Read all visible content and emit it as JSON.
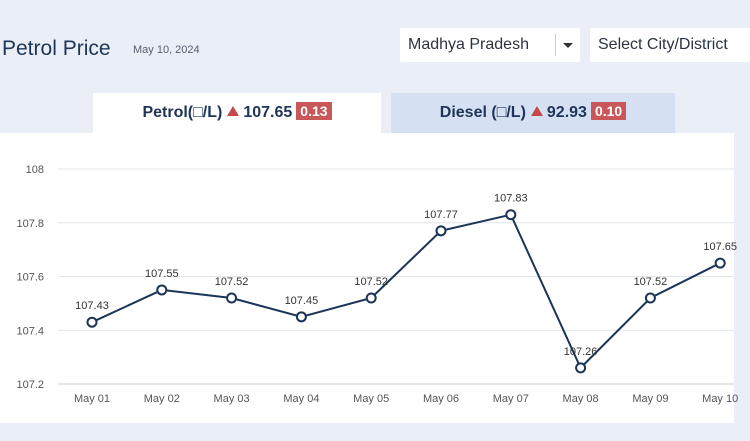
{
  "header": {
    "title": "Petrol Price",
    "date": "May 10, 2024",
    "state_select": "Madhya Pradesh",
    "city_select": "Select City/District"
  },
  "tabs": {
    "petrol": {
      "label": "Petrol(□/L)",
      "price": "107.65",
      "change": "0.13"
    },
    "diesel": {
      "label": "Diesel (□/L)",
      "price": "92.93",
      "change": "0.10"
    }
  },
  "colors": {
    "line": "#1a3558",
    "badge": "#c9575a",
    "up_arrow": "#c44949"
  },
  "chart_data": {
    "type": "line",
    "categories": [
      "May 01",
      "May 02",
      "May 03",
      "May 04",
      "May 05",
      "May 06",
      "May 07",
      "May 08",
      "May 09",
      "May 10"
    ],
    "values": [
      107.43,
      107.55,
      107.52,
      107.45,
      107.52,
      107.77,
      107.83,
      107.26,
      107.52,
      107.65
    ],
    "data_labels": [
      "107.43",
      "107.55",
      "107.52",
      "107.45",
      "107.52",
      "107.77",
      "107.83",
      "107.26",
      "107.52",
      "107.65"
    ],
    "yticks": [
      "108",
      "107.8",
      "107.6",
      "107.4",
      "107.2"
    ],
    "ylim": [
      107.2,
      108
    ],
    "grid": true,
    "title": "",
    "xlabel": "",
    "ylabel": ""
  }
}
